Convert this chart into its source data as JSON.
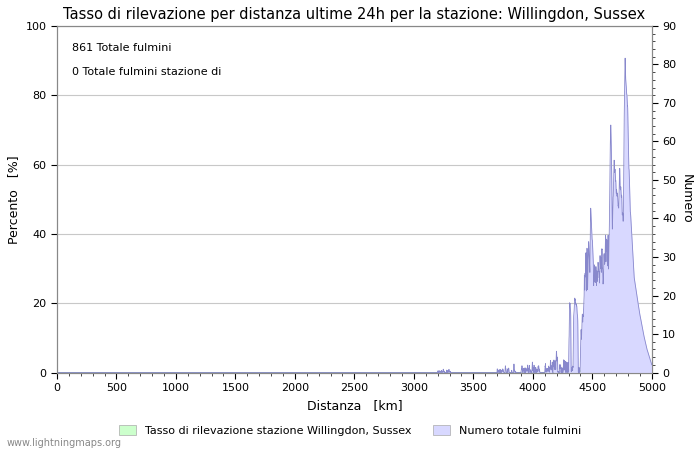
{
  "title": "Tasso di rilevazione per distanza ultime 24h per la stazione: Willingdon, Sussex",
  "xlabel": "Distanza   [km]",
  "ylabel_left": "Percento   [%]",
  "ylabel_right": "Numero",
  "annotation_line1": "861 Totale fulmini",
  "annotation_line2": "0 Totale fulmini stazione di",
  "legend_label1": "Tasso di rilevazione stazione Willingdon, Sussex",
  "legend_label2": "Numero totale fulmini",
  "footer": "www.lightningmaps.org",
  "xlim": [
    0,
    5000
  ],
  "ylim_left": [
    0,
    100
  ],
  "ylim_right": [
    0,
    90
  ],
  "xticks": [
    0,
    500,
    1000,
    1500,
    2000,
    2500,
    3000,
    3500,
    4000,
    4500,
    5000
  ],
  "yticks_left": [
    0,
    20,
    40,
    60,
    80,
    100
  ],
  "yticks_right": [
    0,
    10,
    20,
    30,
    40,
    50,
    60,
    70,
    80,
    90
  ],
  "grid_color": "#c8c8c8",
  "fill_green_color": "#ccffcc",
  "fill_blue_color": "#d8d8ff",
  "line_blue_color": "#8888cc",
  "line_green_color": "#88bb88",
  "bg_color": "#ffffff",
  "title_fontsize": 10.5,
  "label_fontsize": 9,
  "tick_fontsize": 8,
  "legend_fontsize": 8,
  "annotation_fontsize": 8
}
